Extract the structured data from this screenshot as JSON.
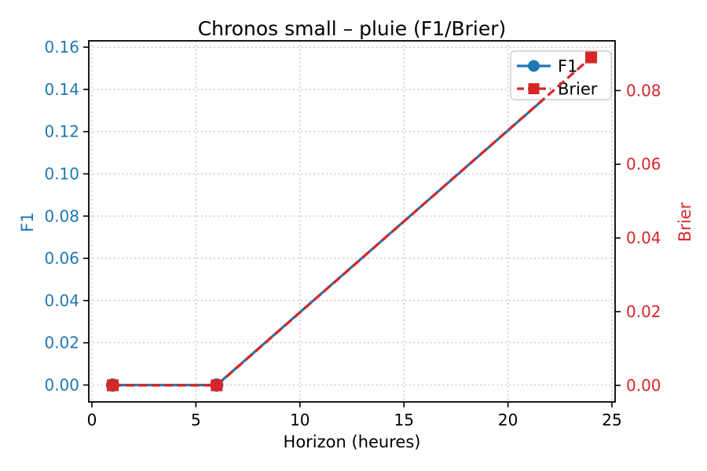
{
  "chart_data": {
    "type": "line",
    "title": "Chronos small – pluie (F1/Brier)",
    "xlabel": "Horizon (heures)",
    "ylabel_left": "F1",
    "ylabel_right": "Brier",
    "x": [
      1,
      6,
      24
    ],
    "series": [
      {
        "name": "F1",
        "axis": "left",
        "color": "#1f77b4",
        "line_style": "solid",
        "marker": "circle",
        "values": [
          0.0,
          0.0,
          0.155
        ]
      },
      {
        "name": "Brier",
        "axis": "right",
        "color": "#d62728",
        "line_style": "dashed",
        "marker": "square",
        "values": [
          0.0,
          0.0,
          0.089
        ]
      }
    ],
    "xlim": [
      -0.15,
      25.15
    ],
    "ylim_left": [
      -0.008,
      0.163
    ],
    "ylim_right": [
      -0.0045,
      0.0935
    ],
    "xticks": [
      0,
      5,
      10,
      15,
      20,
      25
    ],
    "xtick_labels": [
      "0",
      "5",
      "10",
      "15",
      "20",
      "25"
    ],
    "ytick_labels_left": [
      "0.00",
      "0.02",
      "0.04",
      "0.06",
      "0.08",
      "0.10",
      "0.12",
      "0.14",
      "0.16"
    ],
    "ytick_labels_right": [
      "0.00",
      "0.02",
      "0.04",
      "0.06",
      "0.08"
    ],
    "grid": true,
    "grid_style": "dotted",
    "legend": {
      "position": "upper right",
      "entries": [
        "F1",
        "Brier"
      ]
    },
    "colors": {
      "f1": "#1f77b4",
      "brier": "#d62728",
      "grid": "#cccccc",
      "text": "#000000",
      "legend_border": "#cccccc",
      "background": "#ffffff"
    }
  }
}
